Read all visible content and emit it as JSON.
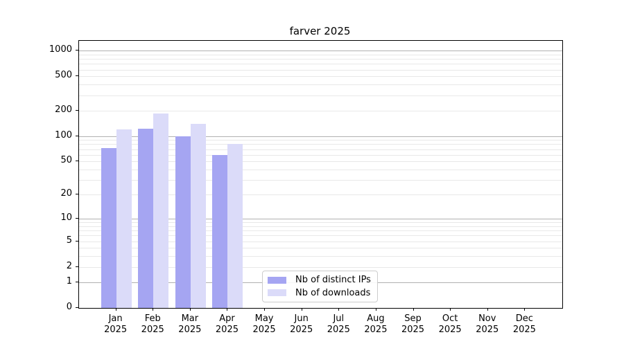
{
  "chart_data": {
    "type": "bar",
    "title": "farver 2025",
    "categories": [
      "Jan\n2025",
      "Feb\n2025",
      "Mar\n2025",
      "Apr\n2025",
      "May\n2025",
      "Jun\n2025",
      "Jul\n2025",
      "Aug\n2025",
      "Sep\n2025",
      "Oct\n2025",
      "Nov\n2025",
      "Dec\n2025"
    ],
    "series": [
      {
        "name": "Nb of distinct IPs",
        "color": "#a5a5f2",
        "values": [
          72,
          123,
          100,
          60,
          null,
          null,
          null,
          null,
          null,
          null,
          null,
          null
        ]
      },
      {
        "name": "Nb of downloads",
        "color": "#dbdbf9",
        "values": [
          120,
          185,
          138,
          80,
          null,
          null,
          null,
          null,
          null,
          null,
          null,
          null
        ]
      }
    ],
    "yscale": "log1p",
    "ylim": [
      0,
      1300
    ],
    "yticks": [
      0,
      1,
      2,
      5,
      10,
      20,
      50,
      100,
      200,
      500,
      1000
    ],
    "grid": {
      "major": [
        1,
        10,
        100,
        1000
      ],
      "minor": [
        2,
        3,
        4,
        5,
        6,
        7,
        8,
        9,
        20,
        30,
        40,
        50,
        60,
        70,
        80,
        90,
        200,
        300,
        400,
        500,
        600,
        700,
        800,
        900
      ]
    },
    "legend_position": "lower center",
    "colors": {
      "major_grid": "#b0b0b0",
      "minor_grid": "#e8e8e8",
      "axis": "#000000"
    }
  }
}
